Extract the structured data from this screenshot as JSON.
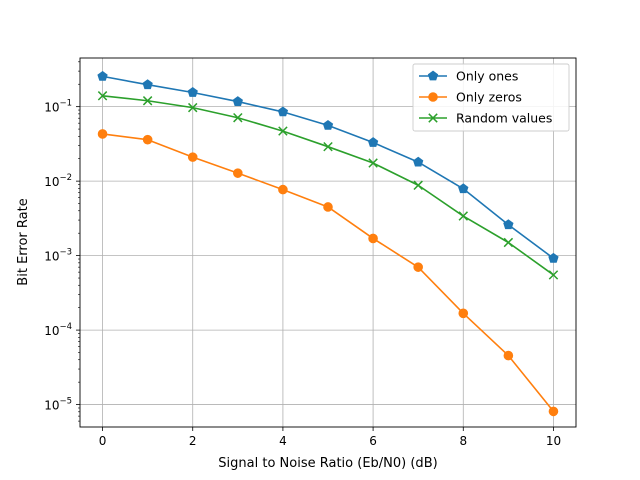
{
  "chart_data": {
    "type": "line",
    "title": "",
    "xlabel": "Signal to Noise Ratio (Eb/N0) (dB)",
    "ylabel": "Bit Error Rate",
    "y_scale": "log",
    "xlim": [
      -0.5,
      10.5
    ],
    "ylim": [
      5e-06,
      0.45
    ],
    "grid": true,
    "legend_position": "top-right",
    "x": [
      0,
      1,
      2,
      3,
      4,
      5,
      6,
      7,
      8,
      9,
      10
    ],
    "x_ticks": [
      0,
      2,
      4,
      6,
      8,
      10
    ],
    "x_tick_labels": [
      "0",
      "2",
      "4",
      "6",
      "8",
      "10"
    ],
    "y_ticks": [
      1e-05,
      0.0001,
      0.001,
      0.01,
      0.1
    ],
    "y_tick_labels": [
      {
        "base": "10",
        "exp": "−5"
      },
      {
        "base": "10",
        "exp": "−4"
      },
      {
        "base": "10",
        "exp": "−3"
      },
      {
        "base": "10",
        "exp": "−2"
      },
      {
        "base": "10",
        "exp": "−1"
      }
    ],
    "series": [
      {
        "name": "Only ones",
        "color": "#1f77b4",
        "marker": "pentagon",
        "values": [
          0.255,
          0.197,
          0.155,
          0.117,
          0.085,
          0.056,
          0.033,
          0.018,
          0.0079,
          0.0026,
          0.00092
        ]
      },
      {
        "name": "Only zeros",
        "color": "#ff7f0e",
        "marker": "circle",
        "values": [
          0.043,
          0.036,
          0.021,
          0.0128,
          0.0077,
          0.0045,
          0.0017,
          0.0007,
          0.000168,
          4.55e-05,
          8.1e-06
        ]
      },
      {
        "name": "Random values",
        "color": "#2ca02c",
        "marker": "x",
        "values": [
          0.14,
          0.12,
          0.097,
          0.071,
          0.047,
          0.029,
          0.0175,
          0.0088,
          0.0034,
          0.0015,
          0.00055
        ]
      }
    ]
  }
}
